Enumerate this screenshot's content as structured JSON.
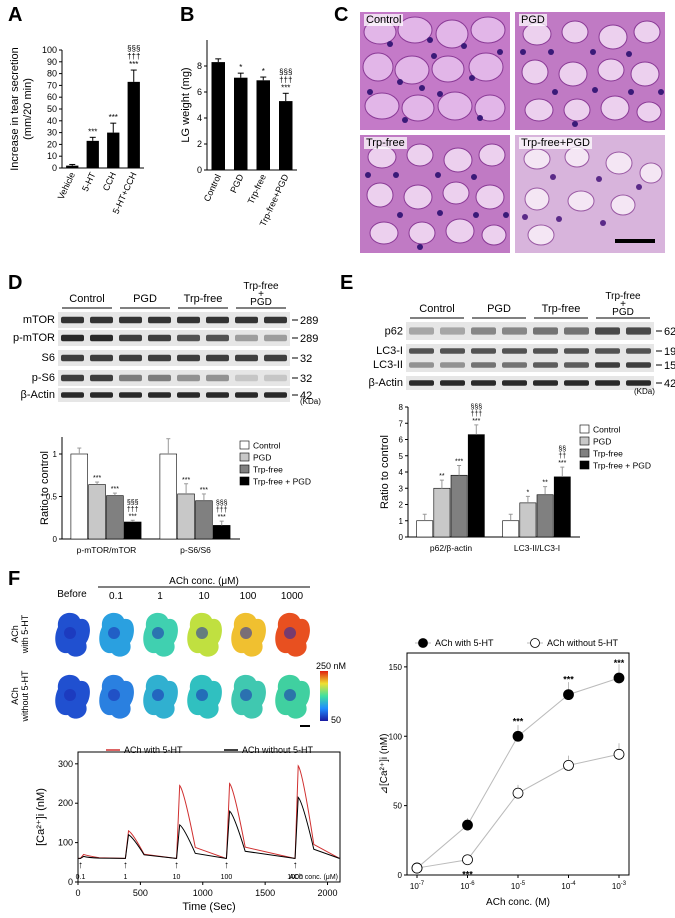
{
  "panels": {
    "A": "A",
    "B": "B",
    "C": "C",
    "D": "D",
    "E": "E",
    "F": "F"
  },
  "sig": {
    "s3": "***",
    "s1": "*",
    "s2": "**",
    "t3": "†††",
    "t2": "††",
    "p3": "§§§",
    "p2": "§§"
  },
  "panel_c": {
    "labels": [
      "Control",
      "PGD",
      "Trp-free",
      "Trp-free+PGD"
    ]
  },
  "blot_d": {
    "groups": [
      "Control",
      "PGD",
      "Trp-free",
      "Trp-free + PGD"
    ],
    "rows": [
      "mTOR",
      "p-mTOR",
      "S6",
      "p-S6",
      "β-Actin"
    ],
    "mw": [
      "289",
      "289",
      "32",
      "32",
      "42"
    ],
    "unit": "(KDa)"
  },
  "blot_e": {
    "groups": [
      "Control",
      "PGD",
      "Trp-free",
      "Trp-free + PGD"
    ],
    "rows": [
      "p62",
      "LC3-I",
      "LC3-II",
      "β-Actin"
    ],
    "mw": [
      "62",
      "19",
      "15",
      "42"
    ],
    "unit": "(KDa)"
  },
  "panel_f": {
    "before": "Before",
    "conc_title": "ACh conc. (μM)",
    "concs": [
      "0.1",
      "1",
      "10",
      "100",
      "1000"
    ],
    "row1": [
      "ACh",
      "with 5-HT"
    ],
    "row2": [
      "ACh",
      "without 5-HT"
    ],
    "cbar_top": "250 nM",
    "cbar_bot": "50",
    "trace_unit": "ACh conc. (μM)"
  },
  "chart_data": [
    {
      "type": "bar",
      "panel": "A",
      "categories": [
        "Vehicle",
        "5-HT",
        "CCH",
        "5-HT+CCH"
      ],
      "values": [
        2,
        23,
        30,
        73
      ],
      "errors": [
        1,
        3,
        8,
        10
      ],
      "ylabel": "Increase in tear secretion (mm/20 min)",
      "ylim": [
        0,
        100
      ],
      "yticks": [
        0,
        10,
        20,
        30,
        40,
        50,
        60,
        70,
        80,
        90,
        100
      ]
    },
    {
      "type": "bar",
      "panel": "B",
      "categories": [
        "Control",
        "PGD",
        "Trp-free",
        "Trp-free+PGD"
      ],
      "values": [
        8.3,
        7.1,
        6.9,
        5.3
      ],
      "errors": [
        0.25,
        0.35,
        0.25,
        0.6
      ],
      "ylabel": "LG weight (mg)",
      "ylim": [
        0,
        10
      ],
      "yticks": [
        0,
        2,
        4,
        6,
        8
      ]
    },
    {
      "type": "bar",
      "panel": "D",
      "categories": [
        "p-mTOR/mTOR",
        "p-S6/S6"
      ],
      "series": [
        {
          "name": "Control",
          "values": [
            1.0,
            1.0
          ],
          "errors": [
            0.07,
            0.18
          ],
          "color": "#ffffff"
        },
        {
          "name": "PGD",
          "values": [
            0.64,
            0.53
          ],
          "errors": [
            0.03,
            0.12
          ],
          "color": "#c8c8c8"
        },
        {
          "name": "Trp-free",
          "values": [
            0.51,
            0.45
          ],
          "errors": [
            0.03,
            0.08
          ],
          "color": "#808080"
        },
        {
          "name": "Trp-free + PGD",
          "values": [
            0.2,
            0.16
          ],
          "errors": [
            0.02,
            0.05
          ],
          "color": "#000000"
        }
      ],
      "ylabel": "Ratio to control",
      "ylim": [
        0,
        1.2
      ],
      "yticks": [
        0,
        0.5,
        1
      ],
      "ytick_labels": [
        "0",
        "0.5",
        "1"
      ]
    },
    {
      "type": "bar",
      "panel": "E",
      "categories": [
        "p62/β-actin",
        "LC3-II/LC3-I"
      ],
      "series": [
        {
          "name": "Control",
          "values": [
            1.0,
            1.0
          ],
          "errors": [
            0.4,
            0.4
          ],
          "color": "#ffffff"
        },
        {
          "name": "PGD",
          "values": [
            3.0,
            2.1
          ],
          "errors": [
            0.5,
            0.4
          ],
          "color": "#c8c8c8"
        },
        {
          "name": "Trp-free",
          "values": [
            3.8,
            2.6
          ],
          "errors": [
            0.6,
            0.5
          ],
          "color": "#808080"
        },
        {
          "name": "Trp-free + PGD",
          "values": [
            6.3,
            3.7
          ],
          "errors": [
            0.6,
            0.6
          ],
          "color": "#000000"
        }
      ],
      "ylabel": "Ratio to control",
      "ylim": [
        0,
        8
      ],
      "yticks": [
        0,
        1,
        2,
        3,
        4,
        5,
        6,
        7,
        8
      ]
    },
    {
      "type": "line",
      "panel": "F-trace",
      "series": [
        {
          "name": "ACh with 5-HT",
          "color": "#d03030"
        },
        {
          "name": "ACh without 5-HT",
          "color": "#000000"
        }
      ],
      "stimuli": [
        {
          "label": "0.1",
          "t": 20,
          "with": 70,
          "without": 65
        },
        {
          "label": "1",
          "t": 380,
          "with": 130,
          "without": 120
        },
        {
          "label": "10",
          "t": 790,
          "with": 245,
          "without": 145
        },
        {
          "label": "100",
          "t": 1190,
          "with": 250,
          "without": 180
        },
        {
          "label": "1000",
          "t": 1740,
          "with": 295,
          "without": 215
        }
      ],
      "xlabel": "Time (Sec)",
      "ylabel": "[Ca²⁺]i (nM)",
      "xlim": [
        0,
        2100
      ],
      "ylim": [
        0,
        330
      ],
      "xticks": [
        0,
        500,
        1000,
        1500,
        2000
      ],
      "yticks": [
        0,
        100,
        200,
        300
      ]
    },
    {
      "type": "scatter",
      "panel": "F-dose",
      "x": [
        "10-7",
        "10-6",
        "10-5",
        "10-4",
        "10-3"
      ],
      "series": [
        {
          "name": "ACh with 5-HT",
          "values": [
            5,
            36,
            100,
            130,
            142
          ],
          "errors": [
            2,
            5,
            8,
            9,
            10
          ],
          "fill": "#000000"
        },
        {
          "name": "ACh without 5-HT",
          "values": [
            5,
            11,
            59,
            79,
            87
          ],
          "errors": [
            2,
            3,
            6,
            7,
            8
          ],
          "fill": "#ffffff"
        }
      ],
      "xlabel": "ACh conc. (M)",
      "ylabel": "⊿[Ca²⁺]i (nM)",
      "ylim": [
        0,
        160
      ],
      "yticks": [
        0,
        50,
        100,
        150
      ]
    }
  ]
}
